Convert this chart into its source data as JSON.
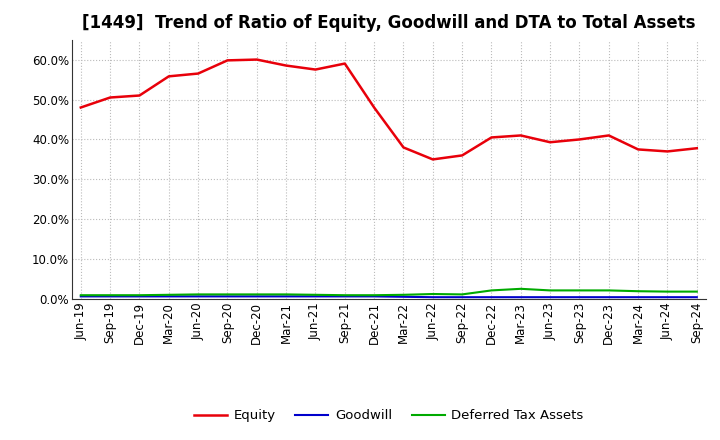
{
  "title": "[1449]  Trend of Ratio of Equity, Goodwill and DTA to Total Assets",
  "x_labels": [
    "Jun-19",
    "Sep-19",
    "Dec-19",
    "Mar-20",
    "Jun-20",
    "Sep-20",
    "Dec-20",
    "Mar-21",
    "Jun-21",
    "Sep-21",
    "Dec-21",
    "Mar-22",
    "Jun-22",
    "Sep-22",
    "Dec-22",
    "Mar-23",
    "Jun-23",
    "Sep-23",
    "Dec-23",
    "Mar-24",
    "Jun-24",
    "Sep-24"
  ],
  "equity": [
    0.48,
    0.505,
    0.51,
    0.558,
    0.565,
    0.598,
    0.6,
    0.585,
    0.575,
    0.59,
    0.48,
    0.38,
    0.35,
    0.36,
    0.405,
    0.41,
    0.393,
    0.4,
    0.41,
    0.375,
    0.37,
    0.378
  ],
  "goodwill": [
    0.007,
    0.007,
    0.007,
    0.007,
    0.007,
    0.007,
    0.007,
    0.007,
    0.007,
    0.007,
    0.007,
    0.006,
    0.005,
    0.005,
    0.005,
    0.005,
    0.005,
    0.005,
    0.005,
    0.005,
    0.005,
    0.005
  ],
  "dta": [
    0.01,
    0.01,
    0.01,
    0.011,
    0.012,
    0.012,
    0.012,
    0.012,
    0.011,
    0.01,
    0.01,
    0.011,
    0.013,
    0.012,
    0.022,
    0.026,
    0.022,
    0.022,
    0.022,
    0.02,
    0.019,
    0.019
  ],
  "equity_color": "#e8000a",
  "goodwill_color": "#0000cc",
  "dta_color": "#00aa00",
  "ylim": [
    0.0,
    0.65
  ],
  "yticks": [
    0.0,
    0.1,
    0.2,
    0.3,
    0.4,
    0.5,
    0.6
  ],
  "background_color": "#ffffff",
  "grid_color": "#bbbbbb",
  "title_fontsize": 12,
  "axis_fontsize": 8.5,
  "legend_fontsize": 9.5
}
